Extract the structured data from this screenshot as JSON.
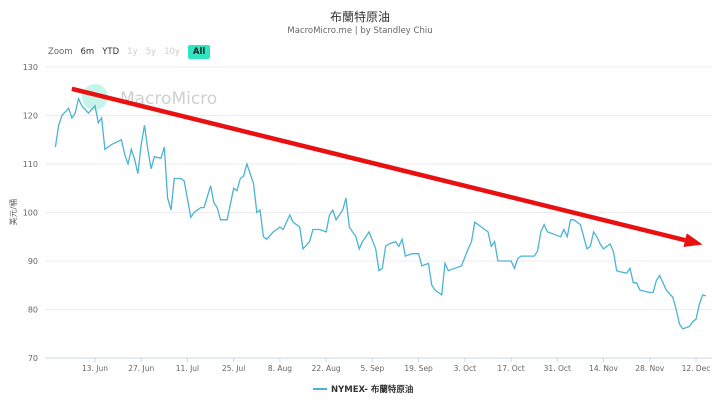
{
  "chart_data": {
    "type": "line",
    "title": "布蘭特原油",
    "subtitle": "MacroMicro.me | by Standley Chiu",
    "watermark": "MacroMicro",
    "ylabel": "美元/桶",
    "ylim": [
      70,
      130
    ],
    "yticks": [
      70,
      80,
      90,
      100,
      110,
      120,
      130
    ],
    "xlim": [
      "2022-06-01",
      "2022-12-16"
    ],
    "xticks": [
      {
        "date": "2022-06-13",
        "label": "13. Jun"
      },
      {
        "date": "2022-06-27",
        "label": "27. Jun"
      },
      {
        "date": "2022-07-11",
        "label": "11. Jul"
      },
      {
        "date": "2022-07-25",
        "label": "25. Jul"
      },
      {
        "date": "2022-08-08",
        "label": "8. Aug"
      },
      {
        "date": "2022-08-22",
        "label": "22. Aug"
      },
      {
        "date": "2022-09-05",
        "label": "5. Sep"
      },
      {
        "date": "2022-09-19",
        "label": "19. Sep"
      },
      {
        "date": "2022-10-03",
        "label": "3. Oct"
      },
      {
        "date": "2022-10-17",
        "label": "17. Oct"
      },
      {
        "date": "2022-10-31",
        "label": "31. Oct"
      },
      {
        "date": "2022-11-14",
        "label": "14. Nov"
      },
      {
        "date": "2022-11-28",
        "label": "28. Nov"
      },
      {
        "date": "2022-12-12",
        "label": "12. Dec"
      }
    ],
    "grid": true,
    "legend_position": "bottom",
    "series": [
      {
        "name": "NYMEX- 布蘭特原油",
        "color": "#4bb3d3",
        "points": [
          [
            "2022-06-01",
            113.5
          ],
          [
            "2022-06-02",
            118
          ],
          [
            "2022-06-03",
            120
          ],
          [
            "2022-06-05",
            121.5
          ],
          [
            "2022-06-06",
            119.5
          ],
          [
            "2022-06-07",
            120.5
          ],
          [
            "2022-06-08",
            123.5
          ],
          [
            "2022-06-09",
            122
          ],
          [
            "2022-06-11",
            120.5
          ],
          [
            "2022-06-13",
            122
          ],
          [
            "2022-06-14",
            118.5
          ],
          [
            "2022-06-15",
            119.5
          ],
          [
            "2022-06-16",
            113
          ],
          [
            "2022-06-18",
            114
          ],
          [
            "2022-06-21",
            115
          ],
          [
            "2022-06-22",
            112
          ],
          [
            "2022-06-23",
            110
          ],
          [
            "2022-06-24",
            113
          ],
          [
            "2022-06-25",
            111
          ],
          [
            "2022-06-26",
            108
          ],
          [
            "2022-06-27",
            114
          ],
          [
            "2022-06-28",
            118
          ],
          [
            "2022-06-29",
            113
          ],
          [
            "2022-06-30",
            109
          ],
          [
            "2022-07-01",
            111.5
          ],
          [
            "2022-07-03",
            111.2
          ],
          [
            "2022-07-04",
            113.5
          ],
          [
            "2022-07-05",
            103
          ],
          [
            "2022-07-06",
            100.5
          ],
          [
            "2022-07-07",
            107
          ],
          [
            "2022-07-09",
            107
          ],
          [
            "2022-07-10",
            106.5
          ],
          [
            "2022-07-12",
            99
          ],
          [
            "2022-07-13",
            100
          ],
          [
            "2022-07-15",
            101
          ],
          [
            "2022-07-16",
            101
          ],
          [
            "2022-07-18",
            105.5
          ],
          [
            "2022-07-19",
            102
          ],
          [
            "2022-07-20",
            101
          ],
          [
            "2022-07-21",
            98.5
          ],
          [
            "2022-07-23",
            98.5
          ],
          [
            "2022-07-25",
            105
          ],
          [
            "2022-07-26",
            104.5
          ],
          [
            "2022-07-27",
            107
          ],
          [
            "2022-07-28",
            107.5
          ],
          [
            "2022-07-29",
            110
          ],
          [
            "2022-07-31",
            106
          ],
          [
            "2022-08-01",
            100
          ],
          [
            "2022-08-02",
            100.5
          ],
          [
            "2022-08-03",
            95
          ],
          [
            "2022-08-04",
            94.5
          ],
          [
            "2022-08-06",
            96
          ],
          [
            "2022-08-08",
            97
          ],
          [
            "2022-08-09",
            96.5
          ],
          [
            "2022-08-11",
            99.5
          ],
          [
            "2022-08-12",
            98
          ],
          [
            "2022-08-14",
            97
          ],
          [
            "2022-08-15",
            92.5
          ],
          [
            "2022-08-17",
            94
          ],
          [
            "2022-08-18",
            96.5
          ],
          [
            "2022-08-20",
            96.5
          ],
          [
            "2022-08-22",
            96
          ],
          [
            "2022-08-23",
            99.5
          ],
          [
            "2022-08-24",
            100.5
          ],
          [
            "2022-08-25",
            98.5
          ],
          [
            "2022-08-27",
            100.5
          ],
          [
            "2022-08-28",
            103
          ],
          [
            "2022-08-29",
            97
          ],
          [
            "2022-08-31",
            95
          ],
          [
            "2022-09-01",
            92.5
          ],
          [
            "2022-09-02",
            94
          ],
          [
            "2022-09-04",
            96
          ],
          [
            "2022-09-06",
            92.5
          ],
          [
            "2022-09-07",
            88
          ],
          [
            "2022-09-08",
            88.5
          ],
          [
            "2022-09-09",
            93
          ],
          [
            "2022-09-10",
            93.5
          ],
          [
            "2022-09-12",
            94
          ],
          [
            "2022-09-13",
            93
          ],
          [
            "2022-09-14",
            94.5
          ],
          [
            "2022-09-15",
            91
          ],
          [
            "2022-09-17",
            91.5
          ],
          [
            "2022-09-19",
            91.5
          ],
          [
            "2022-09-20",
            89
          ],
          [
            "2022-09-22",
            89.5
          ],
          [
            "2022-09-23",
            85
          ],
          [
            "2022-09-24",
            84
          ],
          [
            "2022-09-26",
            83
          ],
          [
            "2022-09-27",
            89.5
          ],
          [
            "2022-09-28",
            88
          ],
          [
            "2022-09-30",
            88.5
          ],
          [
            "2022-10-02",
            89
          ],
          [
            "2022-10-04",
            92.5
          ],
          [
            "2022-10-05",
            94
          ],
          [
            "2022-10-06",
            98
          ],
          [
            "2022-10-08",
            97
          ],
          [
            "2022-10-10",
            96
          ],
          [
            "2022-10-11",
            93
          ],
          [
            "2022-10-12",
            94
          ],
          [
            "2022-10-13",
            90
          ],
          [
            "2022-10-16",
            90
          ],
          [
            "2022-10-17",
            90
          ],
          [
            "2022-10-18",
            88.5
          ],
          [
            "2022-10-19",
            90.5
          ],
          [
            "2022-10-20",
            91
          ],
          [
            "2022-10-22",
            91
          ],
          [
            "2022-10-24",
            91
          ],
          [
            "2022-10-25",
            92
          ],
          [
            "2022-10-26",
            96
          ],
          [
            "2022-10-27",
            97.5
          ],
          [
            "2022-10-28",
            96
          ],
          [
            "2022-10-30",
            95.5
          ],
          [
            "2022-11-01",
            95
          ],
          [
            "2022-11-02",
            96.5
          ],
          [
            "2022-11-03",
            95
          ],
          [
            "2022-11-04",
            98.5
          ],
          [
            "2022-11-05",
            98.5
          ],
          [
            "2022-11-07",
            97.5
          ],
          [
            "2022-11-08",
            95
          ],
          [
            "2022-11-09",
            92.5
          ],
          [
            "2022-11-10",
            93
          ],
          [
            "2022-11-11",
            96
          ],
          [
            "2022-11-12",
            95
          ],
          [
            "2022-11-13",
            93.5
          ],
          [
            "2022-11-14",
            92.5
          ],
          [
            "2022-11-16",
            93.5
          ],
          [
            "2022-11-17",
            92
          ],
          [
            "2022-11-18",
            88
          ],
          [
            "2022-11-19",
            87.8
          ],
          [
            "2022-11-21",
            87.5
          ],
          [
            "2022-11-22",
            88.5
          ],
          [
            "2022-11-23",
            85.5
          ],
          [
            "2022-11-24",
            85.5
          ],
          [
            "2022-11-25",
            84
          ],
          [
            "2022-11-28",
            83.5
          ],
          [
            "2022-11-29",
            83.5
          ],
          [
            "2022-11-30",
            86
          ],
          [
            "2022-12-01",
            87
          ],
          [
            "2022-12-02",
            85.5
          ],
          [
            "2022-12-03",
            84
          ],
          [
            "2022-12-05",
            82.5
          ],
          [
            "2022-12-06",
            80
          ],
          [
            "2022-12-07",
            77
          ],
          [
            "2022-12-08",
            76
          ],
          [
            "2022-12-10",
            76.5
          ],
          [
            "2022-12-11",
            77.5
          ],
          [
            "2022-12-12",
            78
          ],
          [
            "2022-12-13",
            81
          ],
          [
            "2022-12-14",
            83
          ],
          [
            "2022-12-15",
            82.8
          ]
        ]
      }
    ],
    "annotations": [
      {
        "type": "arrow",
        "color": "#e81010",
        "from": [
          "2022-06-06",
          125.5
        ],
        "to": [
          "2022-12-14",
          93.4
        ]
      }
    ]
  },
  "range_selector": {
    "label": "Zoom",
    "buttons": [
      {
        "label": "6m",
        "enabled": true,
        "active": false
      },
      {
        "label": "YTD",
        "enabled": true,
        "active": false
      },
      {
        "label": "1y",
        "enabled": false,
        "active": false
      },
      {
        "label": "5y",
        "enabled": false,
        "active": false
      },
      {
        "label": "10y",
        "enabled": false,
        "active": false
      },
      {
        "label": "All",
        "enabled": true,
        "active": true
      }
    ]
  }
}
